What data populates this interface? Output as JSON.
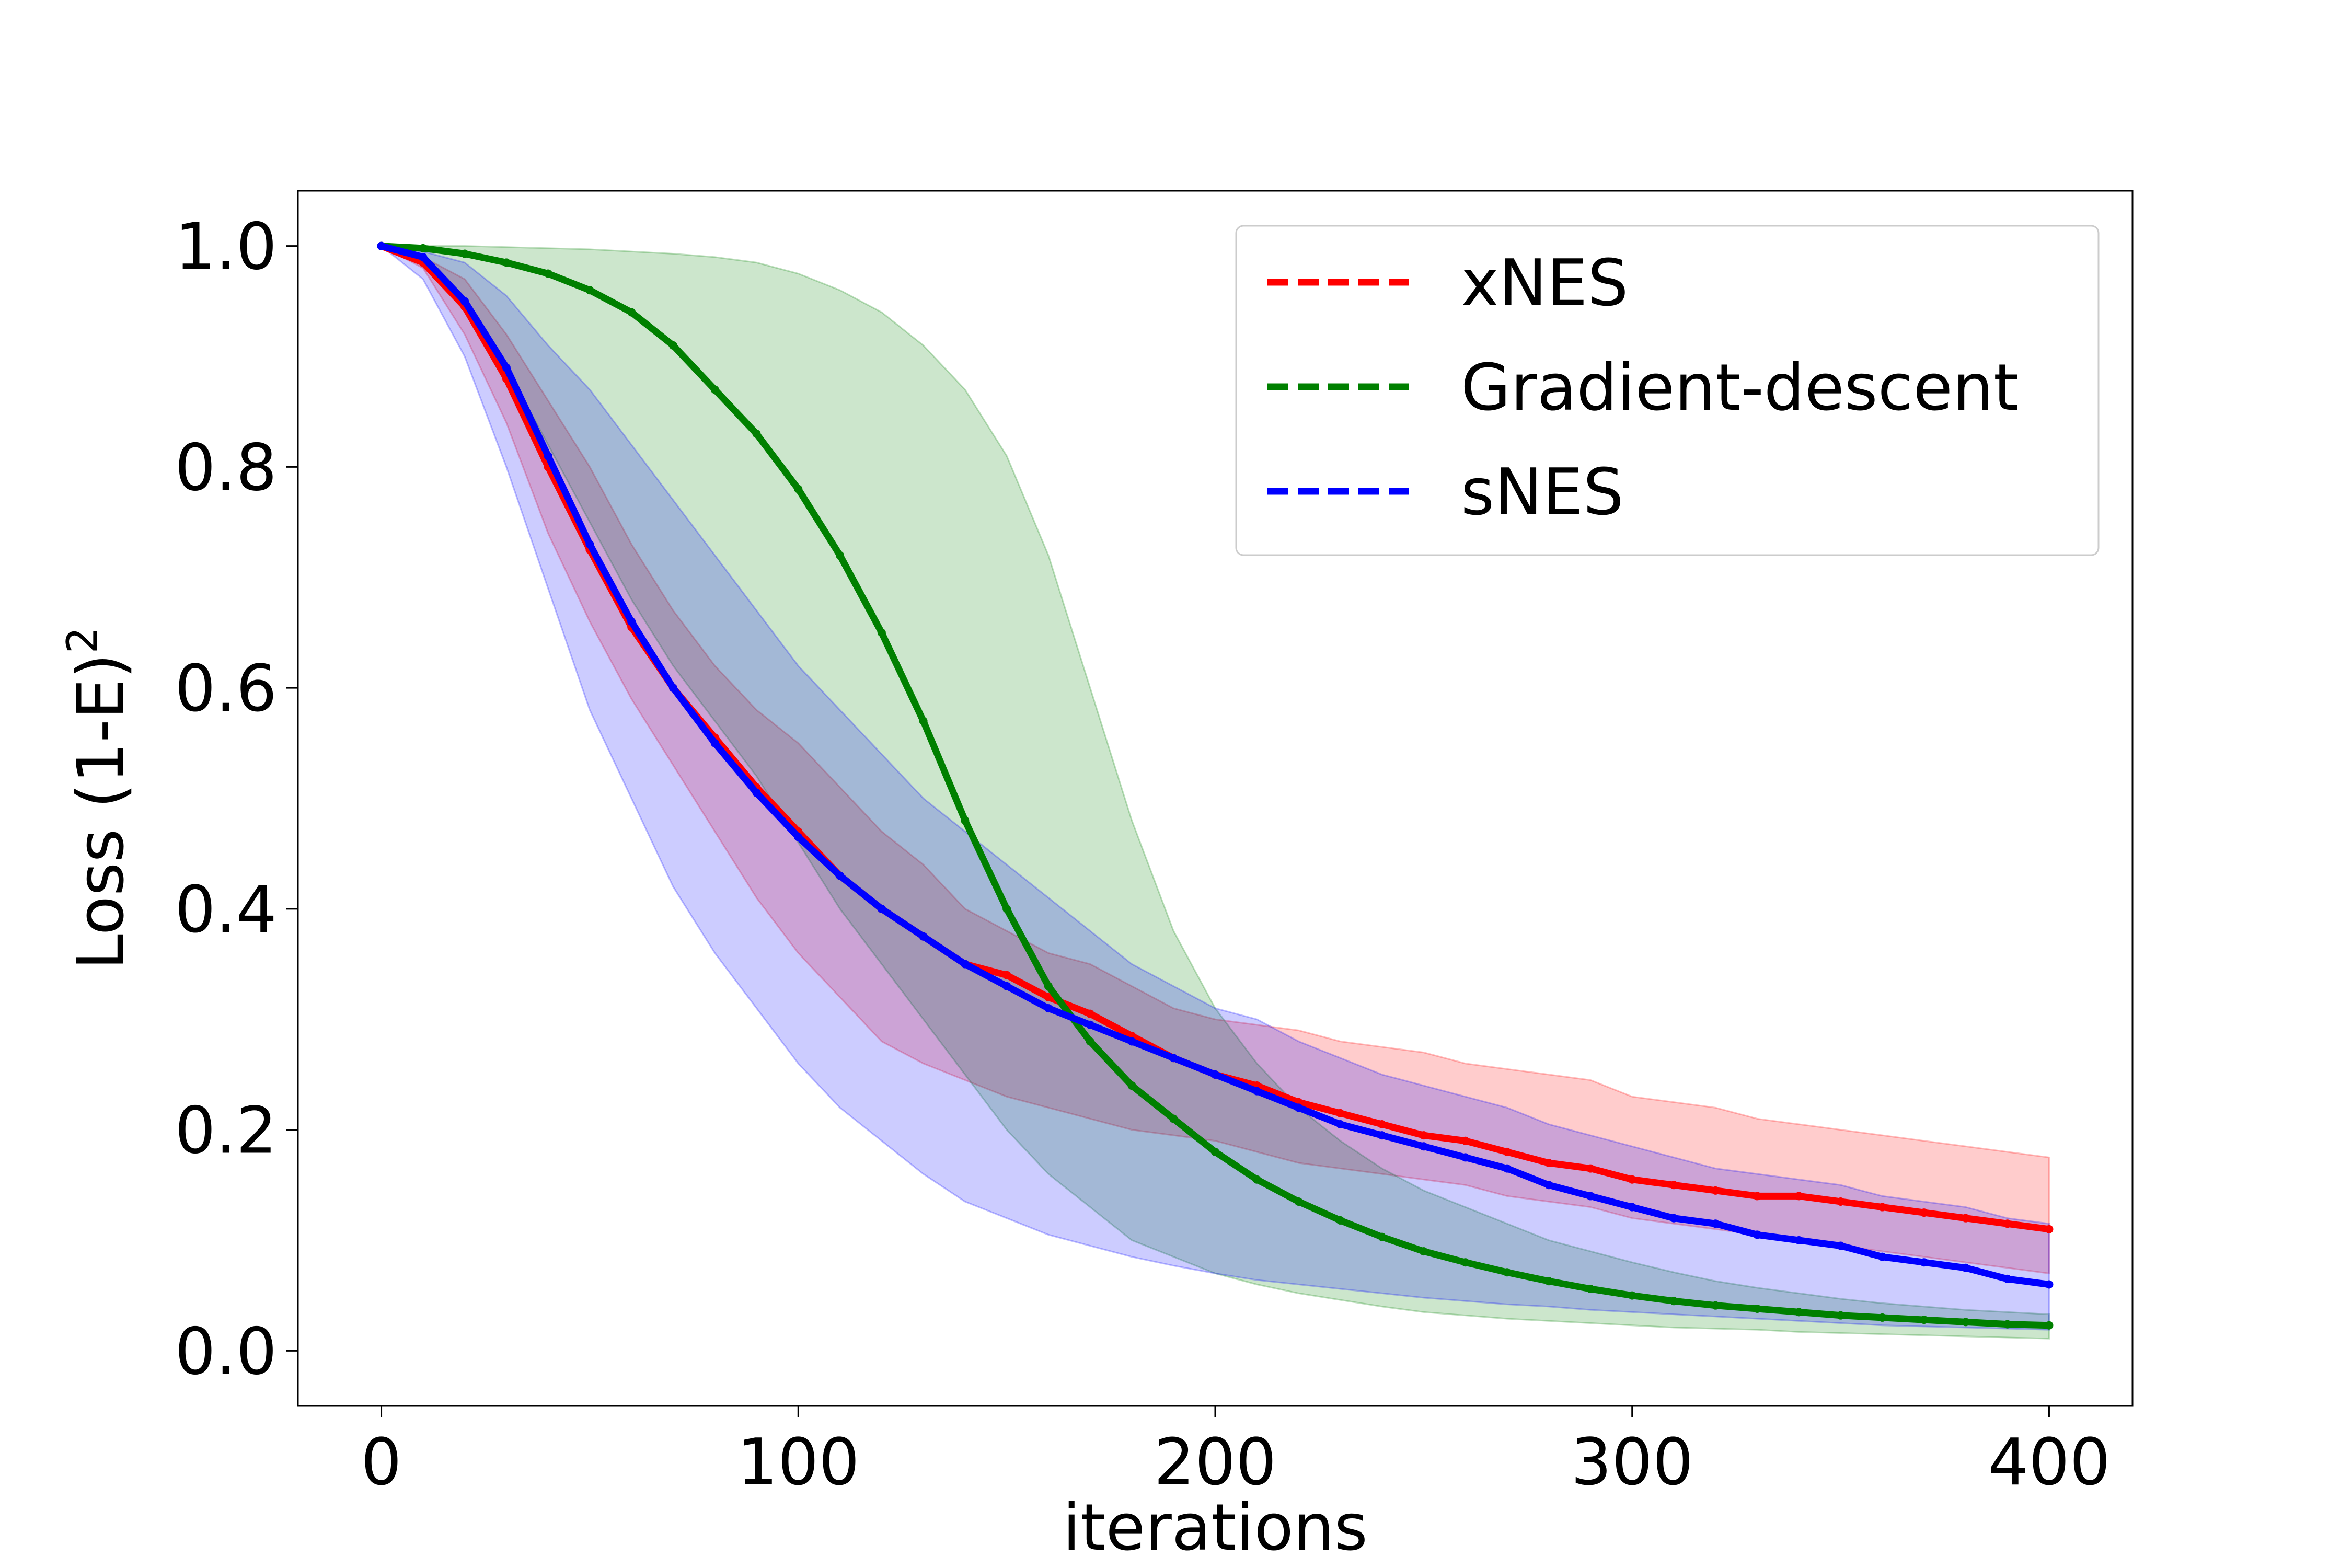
{
  "chart_data": {
    "type": "line",
    "xlabel": "iterations",
    "ylabel": "Loss (1-E)",
    "ylabel_superscript": "2",
    "xlim": [
      -20,
      420
    ],
    "ylim": [
      -0.05,
      1.05
    ],
    "xticks": [
      0,
      100,
      200,
      300,
      400
    ],
    "yticks": [
      0.0,
      0.2,
      0.4,
      0.6,
      0.8,
      1.0
    ],
    "xtick_labels": [
      "0",
      "100",
      "200",
      "300",
      "400"
    ],
    "ytick_labels": [
      "0.0",
      "0.2",
      "0.4",
      "0.6",
      "0.8",
      "1.0"
    ],
    "grid": false,
    "legend_position": "top-right",
    "series": [
      {
        "name": "xNES",
        "color": "#ff0000",
        "x": [
          0,
          10,
          20,
          30,
          40,
          50,
          60,
          70,
          80,
          90,
          100,
          110,
          120,
          130,
          140,
          150,
          160,
          170,
          180,
          190,
          200,
          210,
          220,
          230,
          240,
          250,
          260,
          270,
          280,
          290,
          300,
          310,
          320,
          330,
          340,
          350,
          360,
          370,
          380,
          390,
          400
        ],
        "y": [
          1.0,
          0.985,
          0.945,
          0.88,
          0.8,
          0.725,
          0.655,
          0.6,
          0.555,
          0.51,
          0.47,
          0.43,
          0.4,
          0.375,
          0.35,
          0.34,
          0.32,
          0.305,
          0.285,
          0.265,
          0.25,
          0.24,
          0.225,
          0.215,
          0.205,
          0.195,
          0.19,
          0.18,
          0.17,
          0.165,
          0.155,
          0.15,
          0.145,
          0.14,
          0.14,
          0.135,
          0.13,
          0.125,
          0.12,
          0.115,
          0.11
        ],
        "band_low": [
          1.0,
          0.98,
          0.92,
          0.84,
          0.74,
          0.66,
          0.59,
          0.53,
          0.47,
          0.41,
          0.36,
          0.32,
          0.28,
          0.26,
          0.245,
          0.23,
          0.22,
          0.21,
          0.2,
          0.195,
          0.19,
          0.18,
          0.17,
          0.165,
          0.16,
          0.155,
          0.15,
          0.14,
          0.135,
          0.13,
          0.12,
          0.115,
          0.11,
          0.105,
          0.1,
          0.095,
          0.09,
          0.085,
          0.08,
          0.075,
          0.07
        ],
        "band_high": [
          1.0,
          0.99,
          0.97,
          0.92,
          0.86,
          0.8,
          0.73,
          0.67,
          0.62,
          0.58,
          0.55,
          0.51,
          0.47,
          0.44,
          0.4,
          0.38,
          0.36,
          0.35,
          0.33,
          0.31,
          0.3,
          0.295,
          0.29,
          0.28,
          0.275,
          0.27,
          0.26,
          0.255,
          0.25,
          0.245,
          0.23,
          0.225,
          0.22,
          0.21,
          0.205,
          0.2,
          0.195,
          0.19,
          0.185,
          0.18,
          0.175
        ]
      },
      {
        "name": "Gradient-descent",
        "color": "#008000",
        "x": [
          0,
          10,
          20,
          30,
          40,
          50,
          60,
          70,
          80,
          90,
          100,
          110,
          120,
          130,
          140,
          150,
          160,
          170,
          180,
          190,
          200,
          210,
          220,
          230,
          240,
          250,
          260,
          270,
          280,
          290,
          300,
          310,
          320,
          330,
          340,
          350,
          360,
          370,
          380,
          390,
          400
        ],
        "y": [
          1.0,
          0.998,
          0.993,
          0.985,
          0.975,
          0.96,
          0.94,
          0.91,
          0.87,
          0.83,
          0.78,
          0.72,
          0.65,
          0.57,
          0.48,
          0.4,
          0.33,
          0.28,
          0.24,
          0.21,
          0.18,
          0.155,
          0.135,
          0.118,
          0.103,
          0.09,
          0.08,
          0.071,
          0.063,
          0.056,
          0.05,
          0.045,
          0.041,
          0.038,
          0.035,
          0.032,
          0.03,
          0.028,
          0.026,
          0.024,
          0.023
        ],
        "band_low": [
          1.0,
          0.99,
          0.95,
          0.89,
          0.82,
          0.75,
          0.68,
          0.62,
          0.57,
          0.52,
          0.46,
          0.4,
          0.35,
          0.3,
          0.25,
          0.2,
          0.16,
          0.13,
          0.1,
          0.085,
          0.07,
          0.06,
          0.052,
          0.046,
          0.04,
          0.035,
          0.032,
          0.029,
          0.027,
          0.025,
          0.023,
          0.021,
          0.02,
          0.019,
          0.017,
          0.016,
          0.015,
          0.014,
          0.013,
          0.012,
          0.011
        ],
        "band_high": [
          1.0,
          1.0,
          1.0,
          0.999,
          0.998,
          0.997,
          0.995,
          0.993,
          0.99,
          0.985,
          0.975,
          0.96,
          0.94,
          0.91,
          0.87,
          0.81,
          0.72,
          0.6,
          0.48,
          0.38,
          0.31,
          0.26,
          0.22,
          0.19,
          0.165,
          0.145,
          0.13,
          0.115,
          0.1,
          0.09,
          0.08,
          0.071,
          0.063,
          0.057,
          0.052,
          0.047,
          0.043,
          0.04,
          0.037,
          0.035,
          0.033
        ]
      },
      {
        "name": "sNES",
        "color": "#0000ff",
        "x": [
          0,
          10,
          20,
          30,
          40,
          50,
          60,
          70,
          80,
          90,
          100,
          110,
          120,
          130,
          140,
          150,
          160,
          170,
          180,
          190,
          200,
          210,
          220,
          230,
          240,
          250,
          260,
          270,
          280,
          290,
          300,
          310,
          320,
          330,
          340,
          350,
          360,
          370,
          380,
          390,
          400
        ],
        "y": [
          1.0,
          0.99,
          0.95,
          0.89,
          0.81,
          0.73,
          0.66,
          0.6,
          0.55,
          0.505,
          0.465,
          0.43,
          0.4,
          0.375,
          0.35,
          0.33,
          0.31,
          0.295,
          0.28,
          0.265,
          0.25,
          0.235,
          0.22,
          0.205,
          0.195,
          0.185,
          0.175,
          0.165,
          0.15,
          0.14,
          0.13,
          0.12,
          0.115,
          0.105,
          0.1,
          0.095,
          0.085,
          0.08,
          0.075,
          0.065,
          0.06
        ],
        "band_low": [
          1.0,
          0.97,
          0.9,
          0.8,
          0.69,
          0.58,
          0.5,
          0.42,
          0.36,
          0.31,
          0.26,
          0.22,
          0.19,
          0.16,
          0.135,
          0.12,
          0.105,
          0.095,
          0.085,
          0.077,
          0.07,
          0.064,
          0.06,
          0.056,
          0.052,
          0.048,
          0.045,
          0.042,
          0.04,
          0.037,
          0.035,
          0.033,
          0.031,
          0.029,
          0.027,
          0.025,
          0.023,
          0.022,
          0.021,
          0.02,
          0.019
        ],
        "band_high": [
          1.0,
          0.995,
          0.985,
          0.955,
          0.91,
          0.87,
          0.82,
          0.77,
          0.72,
          0.67,
          0.62,
          0.58,
          0.54,
          0.5,
          0.47,
          0.44,
          0.41,
          0.38,
          0.35,
          0.33,
          0.31,
          0.3,
          0.28,
          0.265,
          0.25,
          0.24,
          0.23,
          0.22,
          0.205,
          0.195,
          0.185,
          0.175,
          0.165,
          0.16,
          0.155,
          0.15,
          0.14,
          0.135,
          0.13,
          0.12,
          0.115
        ]
      }
    ]
  }
}
